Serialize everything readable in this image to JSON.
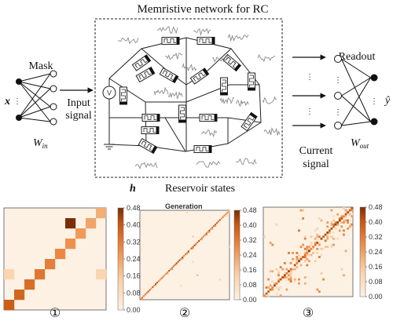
{
  "diagram": {
    "title": "Memristive network for RC",
    "mask_label": "Mask",
    "input_symbol": "x",
    "win_label": "W",
    "win_sub": "in",
    "input_signal_1": "Input",
    "input_signal_2": "signal",
    "voltage_source": "V",
    "readout_label": "Readout",
    "output_symbol": "ŷ",
    "wout_label": "W",
    "wout_sub": "out",
    "current_signal_1": "Current",
    "current_signal_2": "signal",
    "h_symbol": "h",
    "reservoir_label": "Reservoir states"
  },
  "heatmaps": {
    "overlay_text": "Generation",
    "colorbar_ticks": [
      "0.48",
      "0.40",
      "0.32",
      "0.24",
      "0.16",
      "0.08",
      "0.00"
    ],
    "panels": [
      {
        "label": "①"
      },
      {
        "label": "②"
      },
      {
        "label": "③"
      }
    ]
  },
  "colors": {
    "accent_red": "#c0392b",
    "heat_low": "#fdf1e4",
    "heat_high": "#7a2e05",
    "signal_gray": "#8a8a8a"
  }
}
